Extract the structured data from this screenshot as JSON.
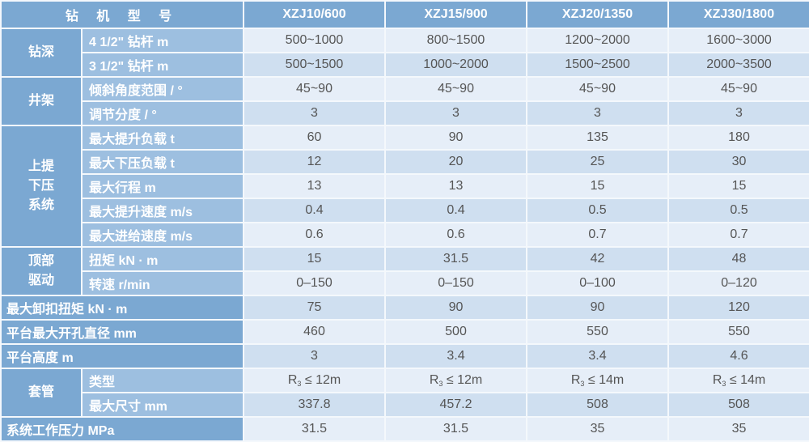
{
  "header": {
    "title": "钻 机 型 号",
    "models": [
      "XZJ10/600",
      "XZJ15/900",
      "XZJ20/1350",
      "XZJ30/1800"
    ]
  },
  "colors": {
    "header_bg": "#7ba8d2",
    "sublabel_bg": "#9dbfe0",
    "row_light": "#e6eef8",
    "row_dark": "#cfdff0"
  },
  "rows": [
    {
      "group": "钻深",
      "span": 2,
      "label": "4 1/2\" 钻杆 m",
      "values": [
        "500~1000",
        "800~1500",
        "1200~2000",
        "1600~3000"
      ]
    },
    {
      "label": "3 1/2\" 钻杆 m",
      "values": [
        "500~1500",
        "1000~2000",
        "1500~2500",
        "2000~3500"
      ]
    },
    {
      "group": "井架",
      "span": 2,
      "label": "倾斜角度范围 / °",
      "values": [
        "45~90",
        "45~90",
        "45~90",
        "45~90"
      ]
    },
    {
      "label": "调节分度 / °",
      "values": [
        "3",
        "3",
        "3",
        "3"
      ]
    },
    {
      "group": "上提\n下压\n系统",
      "span": 5,
      "label": "最大提升负载 t",
      "values": [
        "60",
        "90",
        "135",
        "180"
      ]
    },
    {
      "label": "最大下压负载 t",
      "values": [
        "12",
        "20",
        "25",
        "30"
      ]
    },
    {
      "label": "最大行程 m",
      "values": [
        "13",
        "13",
        "15",
        "15"
      ]
    },
    {
      "label": "最大提升速度 m/s",
      "values": [
        "0.4",
        "0.4",
        "0.5",
        "0.5"
      ]
    },
    {
      "label": "最大进给速度 m/s",
      "values": [
        "0.6",
        "0.6",
        "0.7",
        "0.7"
      ]
    },
    {
      "group": "顶部\n驱动",
      "span": 2,
      "label": "扭矩 kN · m",
      "values": [
        "15",
        "31.5",
        "42",
        "48"
      ]
    },
    {
      "label": "转速 r/min",
      "values": [
        "0–150",
        "0–150",
        "0–100",
        "0–120"
      ]
    },
    {
      "wide": "最大卸扣扭矩 kN · m",
      "values": [
        "75",
        "90",
        "90",
        "120"
      ]
    },
    {
      "wide": "平台最大开孔直径 mm",
      "values": [
        "460",
        "500",
        "550",
        "550"
      ]
    },
    {
      "wide": "平台高度 m",
      "values": [
        "3",
        "3.4",
        "3.4",
        "4.6"
      ]
    },
    {
      "group": "套管",
      "span": 2,
      "label": "类型",
      "casing": [
        {
          "base": "R",
          "sub": "3",
          "rest": " ≤ 12m"
        },
        {
          "base": "R",
          "sub": "3",
          "rest": " ≤ 12m"
        },
        {
          "base": "R",
          "sub": "3",
          "rest": " ≤ 14m"
        },
        {
          "base": "R",
          "sub": "3",
          "rest": " ≤ 14m"
        }
      ]
    },
    {
      "label": "最大尺寸 mm",
      "values": [
        "337.8",
        "457.2",
        "508",
        "508"
      ]
    },
    {
      "wide": "系统工作压力 MPa",
      "values": [
        "31.5",
        "31.5",
        "35",
        "35"
      ]
    }
  ]
}
